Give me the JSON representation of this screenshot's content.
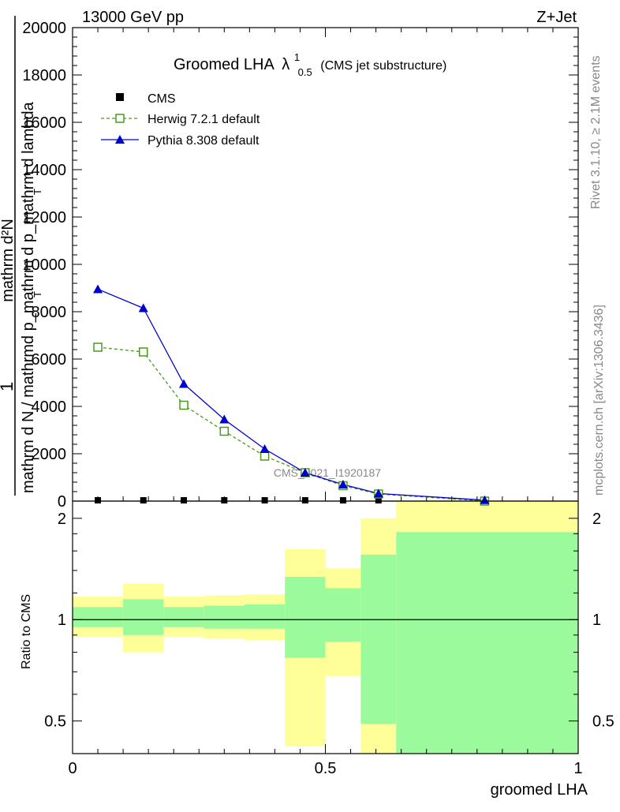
{
  "header": {
    "energy": "13000 GeV pp",
    "process": "Z+Jet"
  },
  "side_labels": {
    "rivet": "Rivet 3.1.10, ≥ 2.1M events",
    "mcplots": "mcplots.cern.ch [arXiv:1306.3436]"
  },
  "watermark": "CMS_2021_I1920187",
  "title": {
    "main": "Groomed LHA",
    "lambda": "λ",
    "sup": "1",
    "sub": "0.5",
    "note": "(CMS jet substructure)"
  },
  "ylabel_main": {
    "one": "1",
    "numerator": "mathrm d²N",
    "denominator": "mathrm d N / mathrmd p_mathrm d p_mathrm d lambda",
    "T1": "T",
    "T2": "T"
  },
  "ylabel_ratio": "Ratio to CMS",
  "xlabel": "groomed LHA",
  "legend": [
    {
      "label": "CMS",
      "color": "#000000",
      "marker": "square-filled",
      "line": "none"
    },
    {
      "label": "Herwig 7.2.1 default",
      "color": "#4a9a1e",
      "marker": "square-open",
      "line": "dashed"
    },
    {
      "label": "Pythia 8.308 default",
      "color": "#0000cc",
      "marker": "triangle-filled",
      "line": "solid"
    }
  ],
  "chart_data": [
    {
      "type": "line",
      "xlim": [
        0,
        1
      ],
      "ylim": [
        0,
        20000
      ],
      "yticks": [
        "0",
        "2000",
        "4000",
        "6000",
        "8000",
        "10000",
        "12000",
        "14000",
        "16000",
        "18000",
        "20000"
      ],
      "ytick_values": [
        0,
        2000,
        4000,
        6000,
        8000,
        10000,
        12000,
        14000,
        16000,
        18000,
        20000
      ],
      "grid": false,
      "legend_position": "top-left",
      "series": [
        {
          "name": "CMS",
          "x": [
            0.05,
            0.14,
            0.22,
            0.3,
            0.38,
            0.46,
            0.535,
            0.605,
            0.815
          ],
          "y": [
            0,
            0,
            0,
            0,
            0,
            0,
            0,
            0,
            0
          ]
        },
        {
          "name": "Herwig 7.2.1 default",
          "x": [
            0.05,
            0.14,
            0.22,
            0.3,
            0.38,
            0.46,
            0.535,
            0.605,
            0.815
          ],
          "y": [
            6500,
            6300,
            4050,
            2950,
            1900,
            1200,
            650,
            300,
            0
          ]
        },
        {
          "name": "Pythia 8.308 default",
          "x": [
            0.05,
            0.14,
            0.22,
            0.3,
            0.38,
            0.46,
            0.535,
            0.605,
            0.815
          ],
          "y": [
            8950,
            8150,
            4950,
            3450,
            2200,
            1200,
            700,
            320,
            40
          ]
        }
      ]
    },
    {
      "type": "area",
      "xlim": [
        0,
        1
      ],
      "ylim": [
        0.4,
        2.25
      ],
      "log_y": true,
      "yticks": [
        "0.5",
        "1",
        "2"
      ],
      "ytick_values": [
        0.5,
        1,
        2
      ],
      "xticks": [
        "0",
        "0.5",
        "1"
      ],
      "xtick_values": [
        0,
        0.5,
        1
      ],
      "reference_line": 1,
      "bands": [
        {
          "x0": 0.0,
          "x1": 0.1,
          "stat_lo": 0.95,
          "stat_hi": 1.09,
          "syst_lo": 0.89,
          "syst_hi": 1.17
        },
        {
          "x0": 0.1,
          "x1": 0.18,
          "stat_lo": 0.9,
          "stat_hi": 1.15,
          "syst_lo": 0.8,
          "syst_hi": 1.28
        },
        {
          "x0": 0.18,
          "x1": 0.26,
          "stat_lo": 0.95,
          "stat_hi": 1.09,
          "syst_lo": 0.89,
          "syst_hi": 1.17
        },
        {
          "x0": 0.26,
          "x1": 0.34,
          "stat_lo": 0.94,
          "stat_hi": 1.1,
          "syst_lo": 0.88,
          "syst_hi": 1.18
        },
        {
          "x0": 0.34,
          "x1": 0.42,
          "stat_lo": 0.94,
          "stat_hi": 1.11,
          "syst_lo": 0.87,
          "syst_hi": 1.19
        },
        {
          "x0": 0.42,
          "x1": 0.5,
          "stat_lo": 0.77,
          "stat_hi": 1.34,
          "syst_lo": 0.42,
          "syst_hi": 1.62
        },
        {
          "x0": 0.5,
          "x1": 0.57,
          "stat_lo": 0.86,
          "stat_hi": 1.24,
          "syst_lo": 0.68,
          "syst_hi": 1.42
        },
        {
          "x0": 0.57,
          "x1": 0.64,
          "stat_lo": 0.49,
          "stat_hi": 1.56,
          "syst_lo": 0.3,
          "syst_hi": 2.0
        },
        {
          "x0": 0.64,
          "x1": 1.0,
          "stat_lo": 0.3,
          "stat_hi": 1.82,
          "syst_lo": 0.3,
          "syst_hi": 3.0
        }
      ]
    }
  ],
  "colors": {
    "stat_band": "#9bfa9b",
    "syst_band": "#ffff99",
    "herwig": "#4a9a1e",
    "pythia": "#0000cc",
    "data": "#000000",
    "watermark": "#888888",
    "side_text": "#888888"
  }
}
